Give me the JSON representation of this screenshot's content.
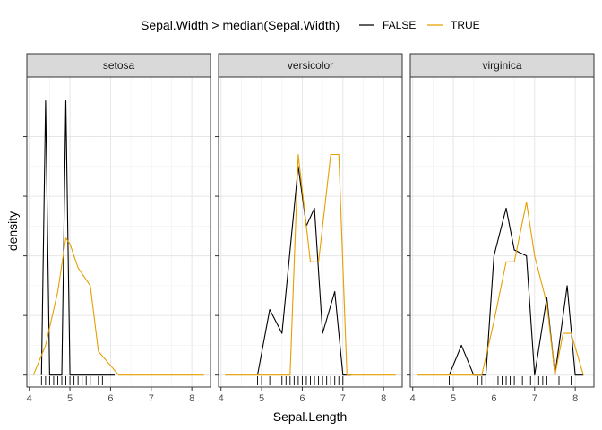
{
  "chart_data": {
    "type": "line",
    "title": "",
    "xlabel": "Sepal.Length",
    "ylabel": "density",
    "legend": {
      "title": "Sepal.Width > median(Sepal.Width)",
      "position": "top",
      "entries": [
        {
          "label": "FALSE",
          "color": "#000000"
        },
        {
          "label": "TRUE",
          "color": "#E69F00"
        }
      ]
    },
    "xlim": [
      3.94,
      8.46
    ],
    "ylim": [
      -0.02,
      0.5
    ],
    "x_ticks": [
      "4",
      "5",
      "6",
      "7",
      "8"
    ],
    "grid": true,
    "rug": true,
    "panels": [
      {
        "name": "setosa",
        "series": [
          {
            "name": "FALSE",
            "x": [
              4.3,
              4.4,
              4.5,
              4.6,
              4.8,
              4.9,
              5.0,
              5.1,
              6.1
            ],
            "y": [
              0.0,
              0.46,
              0.0,
              0.0,
              0.0,
              0.46,
              0.0,
              0.0,
              0.0
            ]
          },
          {
            "name": "TRUE",
            "x": [
              4.1,
              4.4,
              4.7,
              4.9,
              5.0,
              5.2,
              5.5,
              5.7,
              6.2,
              8.3
            ],
            "y": [
              0.0,
              0.05,
              0.14,
              0.23,
              0.22,
              0.18,
              0.15,
              0.04,
              0.0,
              0.0
            ]
          }
        ],
        "rug": [
          4.3,
          4.4,
          4.5,
          4.6,
          4.7,
          4.8,
          4.9,
          5.0,
          5.1,
          5.2,
          5.3,
          5.4,
          5.5,
          5.7,
          5.8
        ]
      },
      {
        "name": "versicolor",
        "series": [
          {
            "name": "FALSE",
            "x": [
              4.9,
              5.2,
              5.5,
              5.9,
              6.1,
              6.3,
              6.5,
              6.8,
              7.0,
              7.2
            ],
            "y": [
              0.0,
              0.11,
              0.07,
              0.35,
              0.25,
              0.28,
              0.07,
              0.14,
              0.0,
              0.0
            ]
          },
          {
            "name": "TRUE",
            "x": [
              4.1,
              5.7,
              5.9,
              6.2,
              6.4,
              6.7,
              6.9,
              7.1,
              8.3
            ],
            "y": [
              0.0,
              0.0,
              0.37,
              0.19,
              0.19,
              0.37,
              0.37,
              0.0,
              0.0
            ]
          }
        ],
        "rug": [
          4.9,
          5.0,
          5.2,
          5.5,
          5.6,
          5.7,
          5.8,
          5.9,
          6.0,
          6.1,
          6.2,
          6.3,
          6.4,
          6.5,
          6.6,
          6.7,
          6.8,
          6.9,
          7.0
        ]
      },
      {
        "name": "virginica",
        "series": [
          {
            "name": "FALSE",
            "x": [
              4.9,
              5.2,
              5.5,
              5.8,
              6.0,
              6.3,
              6.5,
              6.8,
              7.0,
              7.3,
              7.5,
              7.8,
              8.0,
              8.2
            ],
            "y": [
              0.0,
              0.05,
              0.0,
              0.0,
              0.2,
              0.28,
              0.21,
              0.2,
              0.0,
              0.13,
              0.0,
              0.15,
              0.0,
              0.0
            ]
          },
          {
            "name": "TRUE",
            "x": [
              4.1,
              5.7,
              6.0,
              6.3,
              6.5,
              6.8,
              7.0,
              7.3,
              7.5,
              7.7,
              7.9,
              8.2
            ],
            "y": [
              0.0,
              0.0,
              0.09,
              0.19,
              0.19,
              0.29,
              0.2,
              0.12,
              0.0,
              0.07,
              0.07,
              0.0
            ]
          }
        ],
        "rug": [
          4.9,
          5.6,
          5.7,
          5.8,
          6.0,
          6.1,
          6.2,
          6.3,
          6.4,
          6.5,
          6.7,
          6.9,
          7.1,
          7.2,
          7.3,
          7.6,
          7.7,
          7.9
        ]
      }
    ]
  }
}
